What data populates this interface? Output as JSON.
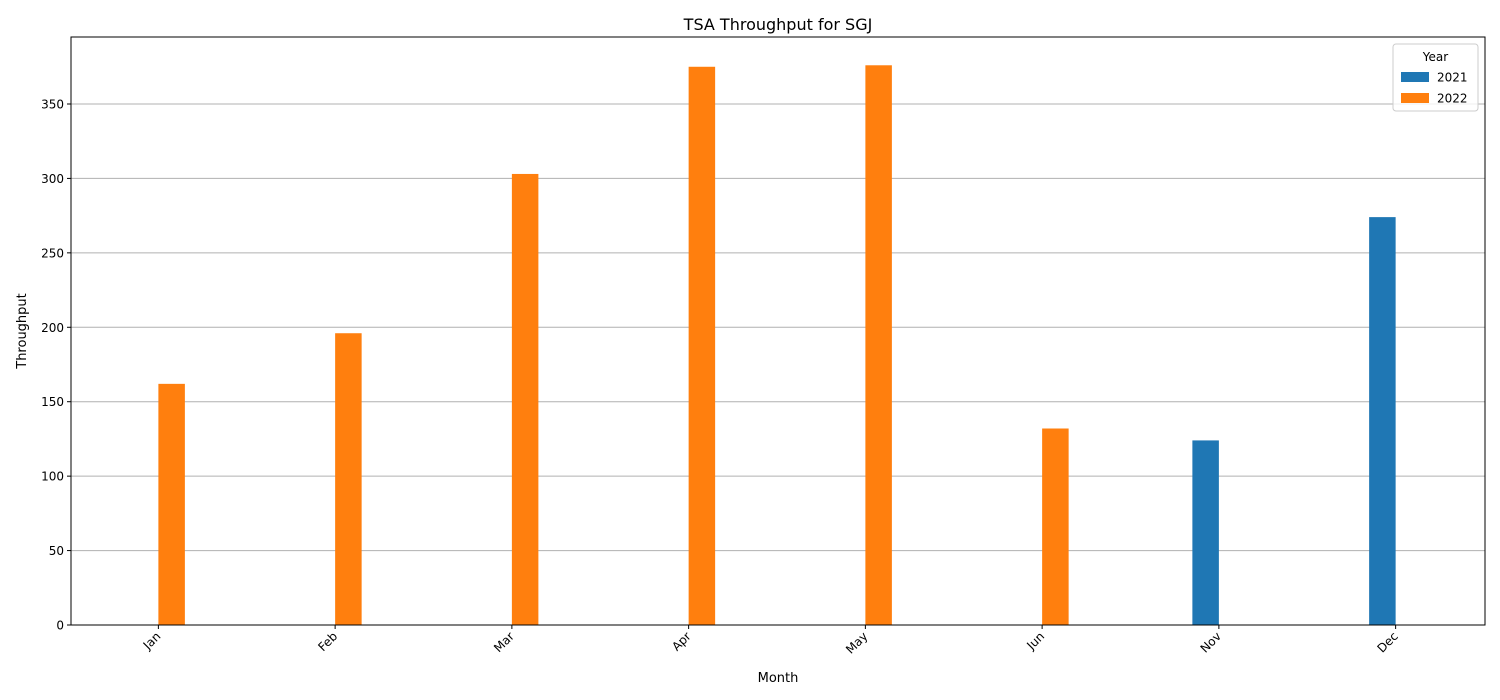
{
  "chart_data": {
    "type": "bar",
    "title": "TSA Throughput for SGJ",
    "xlabel": "Month",
    "ylabel": "Throughput",
    "categories": [
      "Jan",
      "Feb",
      "Mar",
      "Apr",
      "May",
      "Jun",
      "Nov",
      "Dec"
    ],
    "series": [
      {
        "name": "2021",
        "color": "#1f77b4",
        "values": [
          null,
          null,
          null,
          null,
          null,
          null,
          124,
          274
        ]
      },
      {
        "name": "2022",
        "color": "#ff7f0e",
        "values": [
          162,
          196,
          303,
          375,
          376,
          132,
          null,
          null
        ]
      }
    ],
    "ylim": [
      0,
      395
    ],
    "yticks": [
      0,
      50,
      100,
      150,
      200,
      250,
      300,
      350
    ],
    "grid": "y",
    "legend": {
      "title": "Year",
      "position": "top-right"
    }
  }
}
